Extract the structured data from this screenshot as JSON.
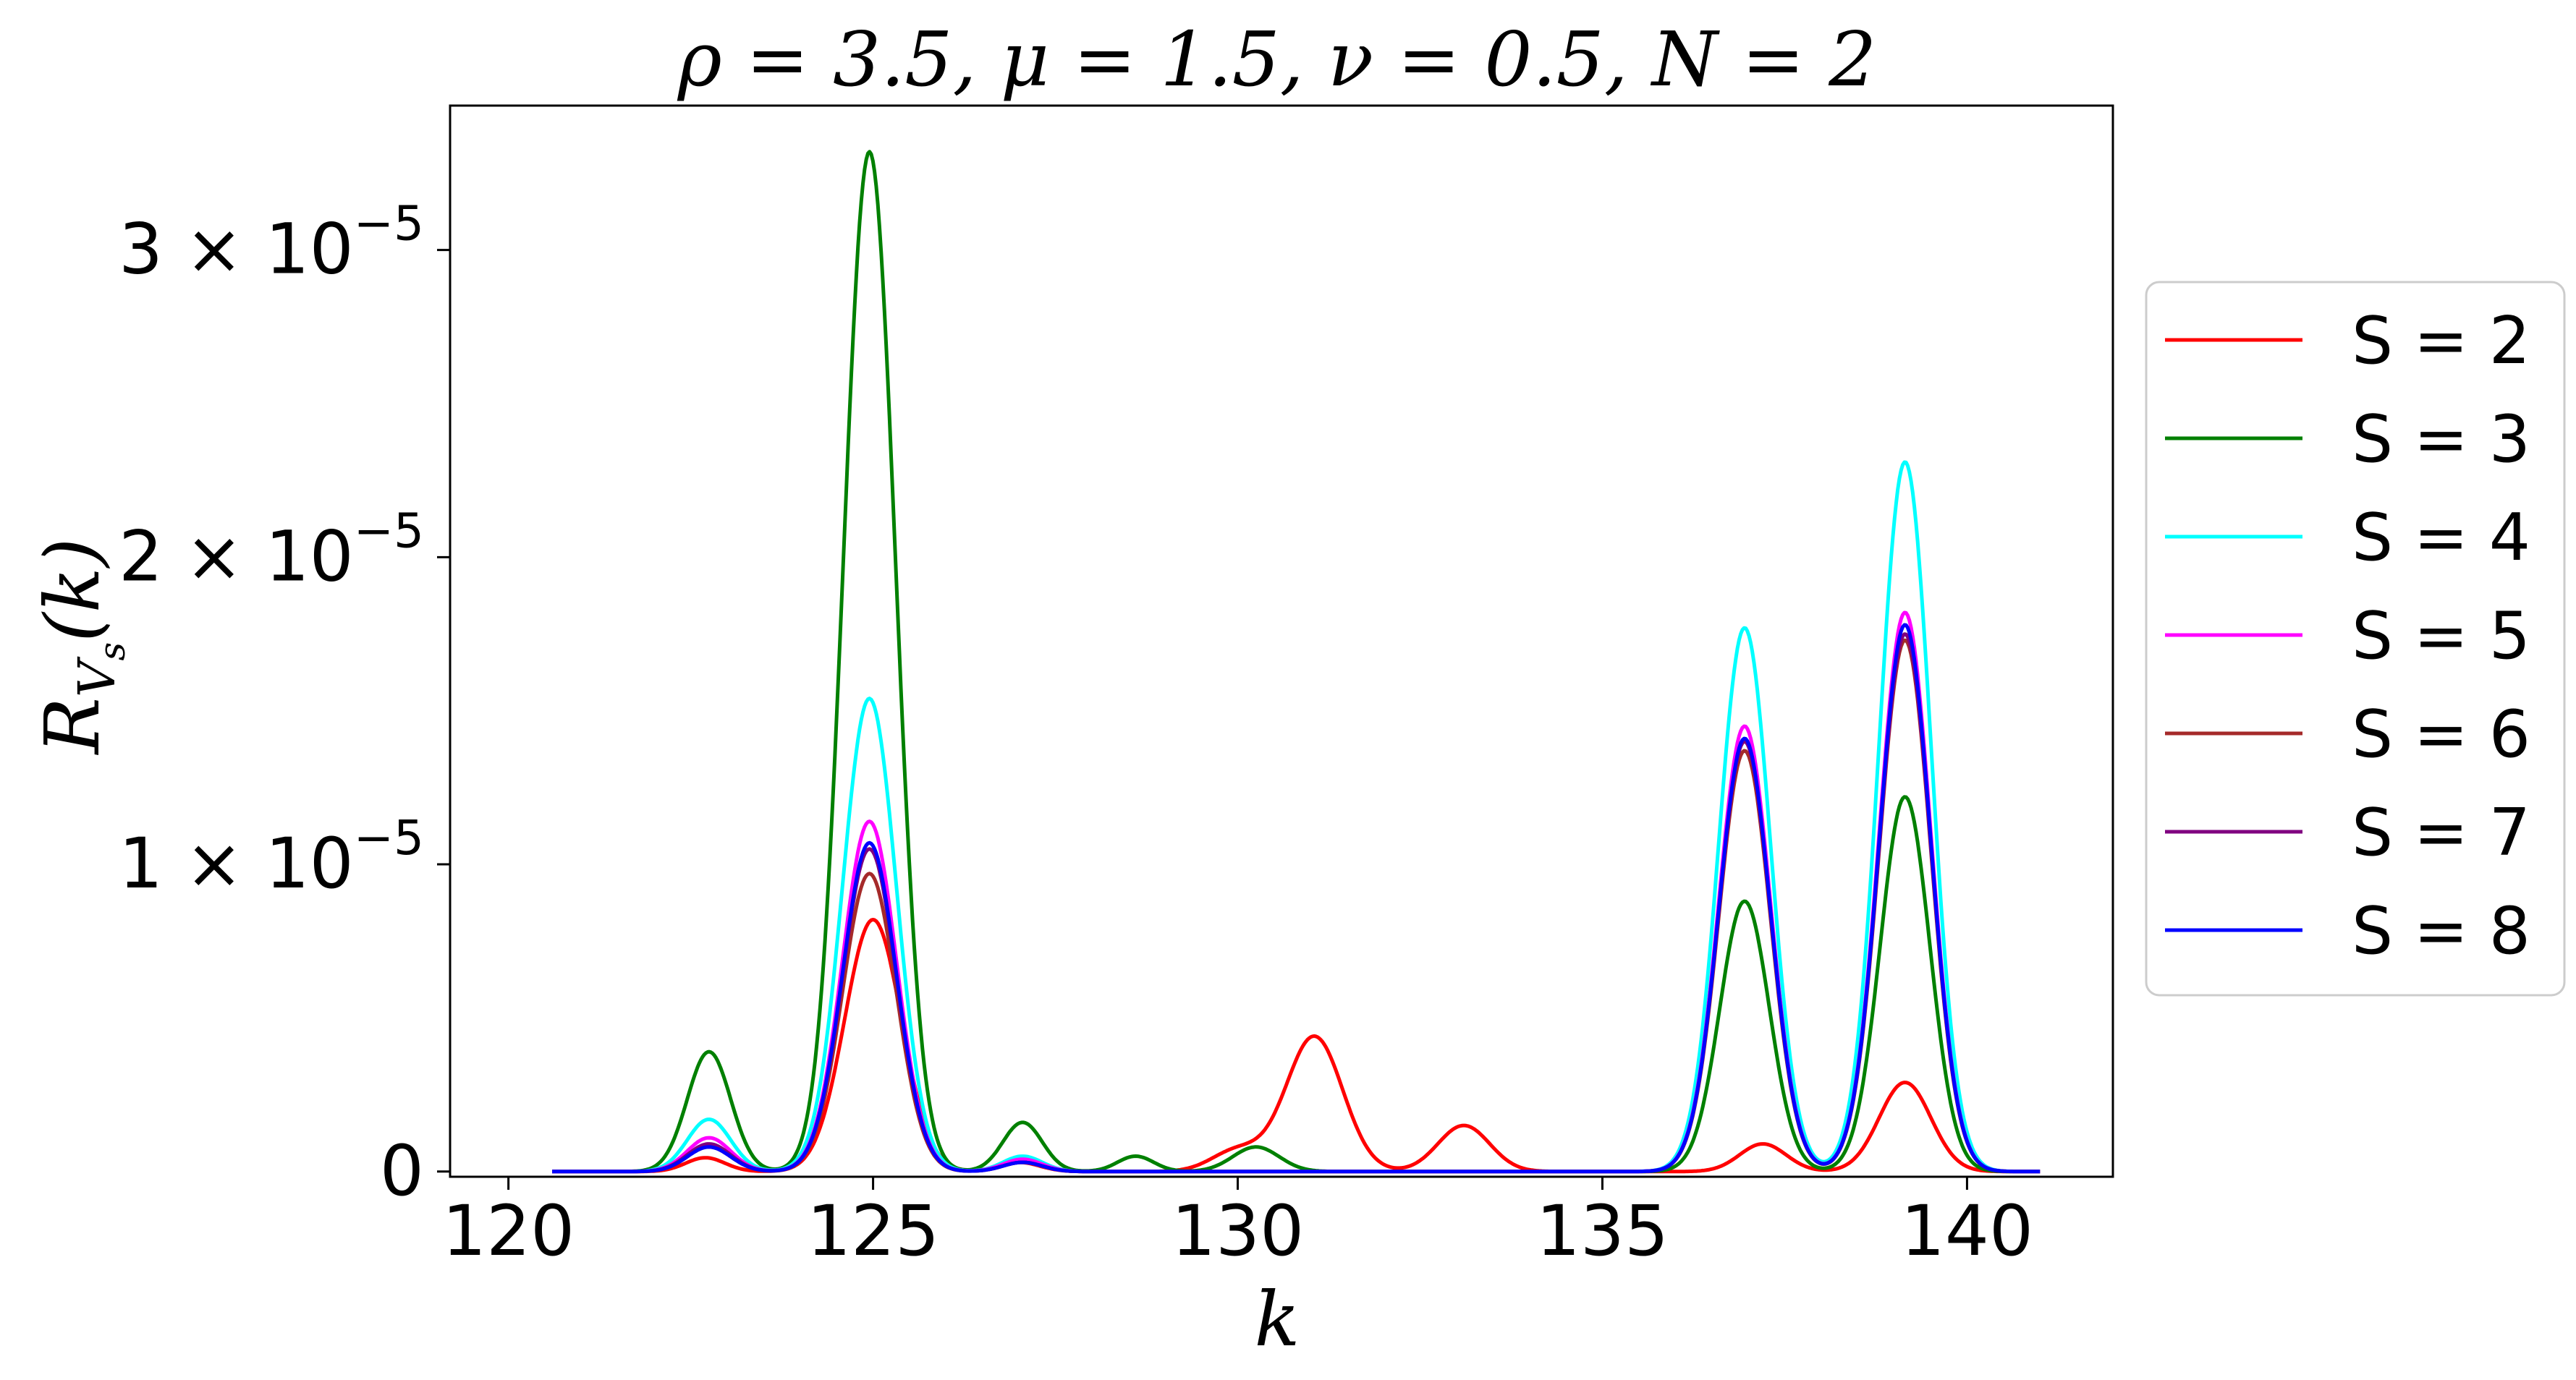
{
  "chart_data": {
    "type": "line",
    "title": "ρ = 3.5, μ = 1.5, ν = 0.5, N = 2",
    "xlabel": "k",
    "ylabel_main": "R",
    "ylabel_sub": "V",
    "ylabel_subsub": "s",
    "ylabel_tail": "(k)",
    "xlim": [
      119.2,
      142.0
    ],
    "ylim": [
      -1.7e-07,
      3.47e-05
    ],
    "x_ticks": [
      120,
      125,
      130,
      135,
      140
    ],
    "x_tick_labels": [
      "120",
      "125",
      "130",
      "135",
      "140"
    ],
    "y_ticks": [
      {
        "value": 0,
        "mantissa": "0",
        "exponent": ""
      },
      {
        "value": 1e-05,
        "mantissa": "1 × 10",
        "exponent": "−5"
      },
      {
        "value": 2e-05,
        "mantissa": "2 × 10",
        "exponent": "−5"
      },
      {
        "value": 3e-05,
        "mantissa": "3 × 10",
        "exponent": "−5"
      }
    ],
    "grid": false,
    "legend_position": "right",
    "x_range": [
      120.6,
      141.0
    ],
    "series": [
      {
        "name": "S = 2",
        "color": "#ff0000",
        "peaks": [
          [
            122.7,
            4.5e-07,
            0.38
          ],
          [
            125.0,
            8.2e-06,
            0.55
          ],
          [
            127.0,
            3e-07,
            0.4
          ],
          [
            130.0,
            7e-07,
            0.5
          ],
          [
            131.05,
            4.4e-06,
            0.55
          ],
          [
            133.1,
            1.5e-06,
            0.5
          ],
          [
            137.2,
            9e-07,
            0.45
          ],
          [
            139.15,
            2.9e-06,
            0.5
          ]
        ]
      },
      {
        "name": "S = 3",
        "color": "#008000",
        "peaks": [
          [
            122.75,
            3.9e-06,
            0.42
          ],
          [
            124.95,
            3.32e-05,
            0.5
          ],
          [
            127.05,
            1.6e-06,
            0.38
          ],
          [
            128.6,
            5e-07,
            0.35
          ],
          [
            130.25,
            8e-07,
            0.45
          ],
          [
            136.95,
            8.8e-06,
            0.48
          ],
          [
            139.15,
            1.22e-05,
            0.48
          ]
        ]
      },
      {
        "name": "S = 4",
        "color": "#00ffff",
        "peaks": [
          [
            122.75,
            1.7e-06,
            0.42
          ],
          [
            124.95,
            1.54e-05,
            0.52
          ],
          [
            127.05,
            5e-07,
            0.38
          ],
          [
            136.95,
            1.77e-05,
            0.5
          ],
          [
            139.15,
            2.31e-05,
            0.5
          ]
        ]
      },
      {
        "name": "S = 5",
        "color": "#ff00ff",
        "peaks": [
          [
            122.75,
            1.1e-06,
            0.42
          ],
          [
            124.95,
            1.14e-05,
            0.52
          ],
          [
            127.05,
            4e-07,
            0.38
          ],
          [
            136.95,
            1.45e-05,
            0.5
          ],
          [
            139.15,
            1.82e-05,
            0.5
          ]
        ]
      },
      {
        "name": "S = 6",
        "color": "#a52a2a",
        "peaks": [
          [
            122.75,
            8e-07,
            0.42
          ],
          [
            124.95,
            9.7e-06,
            0.52
          ],
          [
            127.05,
            3e-07,
            0.38
          ],
          [
            136.95,
            1.37e-05,
            0.5
          ],
          [
            139.15,
            1.73e-05,
            0.5
          ]
        ]
      },
      {
        "name": "S = 7",
        "color": "#800080",
        "peaks": [
          [
            122.75,
            9e-07,
            0.42
          ],
          [
            124.95,
            1.05e-05,
            0.52
          ],
          [
            127.05,
            3e-07,
            0.38
          ],
          [
            136.95,
            1.4e-05,
            0.5
          ],
          [
            139.15,
            1.75e-05,
            0.5
          ]
        ]
      },
      {
        "name": "S = 8",
        "color": "#0000ff",
        "peaks": [
          [
            122.75,
            8e-07,
            0.42
          ],
          [
            124.95,
            1.07e-05,
            0.52
          ],
          [
            127.05,
            3e-07,
            0.38
          ],
          [
            136.95,
            1.41e-05,
            0.5
          ],
          [
            139.15,
            1.78e-05,
            0.5
          ]
        ]
      }
    ]
  }
}
